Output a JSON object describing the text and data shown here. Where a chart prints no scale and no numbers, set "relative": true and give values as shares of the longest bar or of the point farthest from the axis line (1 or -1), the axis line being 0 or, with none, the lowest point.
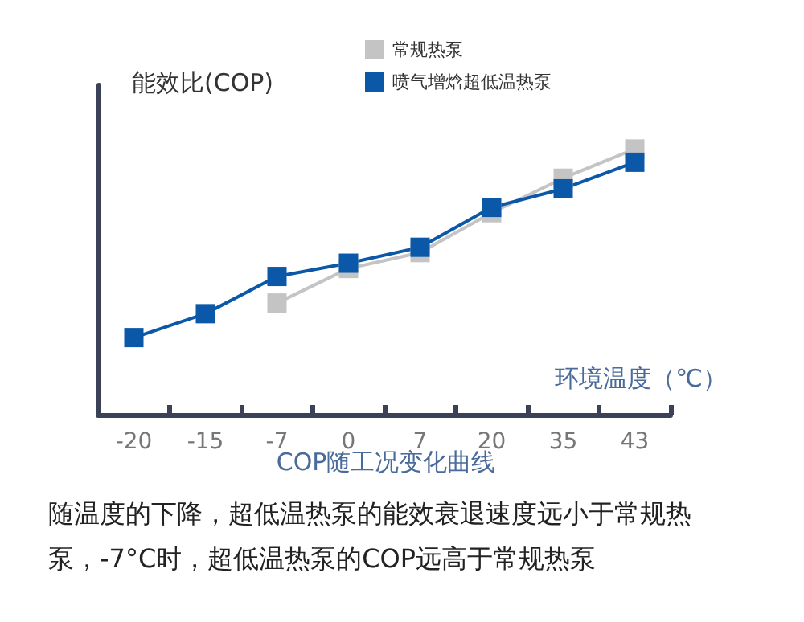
{
  "chart_data": {
    "type": "line",
    "title": "COP随工况变化曲线",
    "xlabel": "环境温度（℃）",
    "ylabel": "能效比(COP)",
    "relative": true,
    "categories": [
      "-20",
      "-15",
      "-7",
      "0",
      "7",
      "20",
      "35",
      "43"
    ],
    "series": [
      {
        "name": "常规热泵",
        "color": "#c4c4c4",
        "values": [
          null,
          null,
          0.42,
          0.55,
          0.61,
          0.76,
          0.89,
          1
        ]
      },
      {
        "name": "喷气增焓超低温热泵",
        "color": "#0b57a8",
        "values": [
          0.29,
          0.38,
          0.52,
          0.57,
          0.63,
          0.78,
          0.85,
          0.95
        ]
      }
    ],
    "marker": "square",
    "legend": "top",
    "grid": false,
    "annotations": [
      "随温度的下降，超低温热泵的能效衰退速度远小于常规热泵，-7°C时，超低温热泵的COP远高于常规热泵"
    ]
  }
}
